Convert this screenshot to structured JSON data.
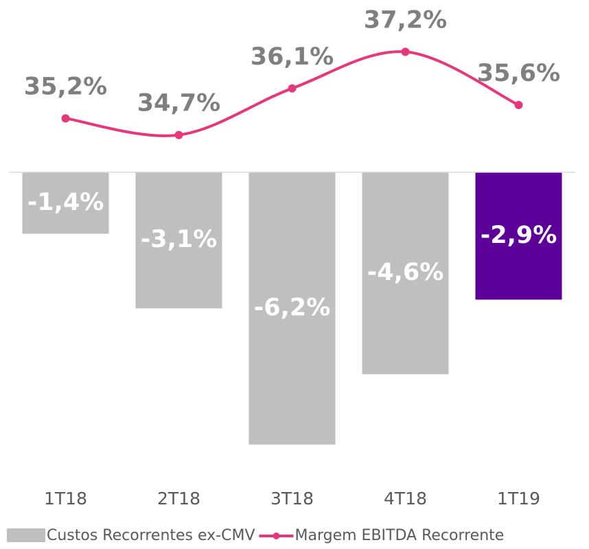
{
  "chart_data": {
    "type": "bar-line",
    "categories": [
      "1T18",
      "2T18",
      "3T18",
      "4T18",
      "1T19"
    ],
    "series": [
      {
        "name": "Custos Recorrentes ex-CMV",
        "type": "bar",
        "color": "#bfbfbf",
        "colors": [
          "#bfbfbf",
          "#bfbfbf",
          "#bfbfbf",
          "#bfbfbf",
          "#5c0099"
        ],
        "values": [
          -1.4,
          -3.1,
          -6.2,
          -4.6,
          -2.9
        ],
        "value_labels": [
          "-1,4%",
          "-3,1%",
          "-6,2%",
          "-4,6%",
          "-2,9%"
        ]
      },
      {
        "name": "Margem EBITDA Recorrente",
        "type": "line",
        "axis": "y2",
        "color": "#e8357c",
        "values": [
          35.2,
          34.7,
          36.1,
          37.2,
          35.6
        ],
        "value_labels": [
          "35,2%",
          "34,7%",
          "36,1%",
          "37,2%",
          "35,6%"
        ]
      }
    ],
    "ylim": [
      -6.5,
      3.5
    ],
    "y2lim": [
      25,
      38.2
    ]
  }
}
